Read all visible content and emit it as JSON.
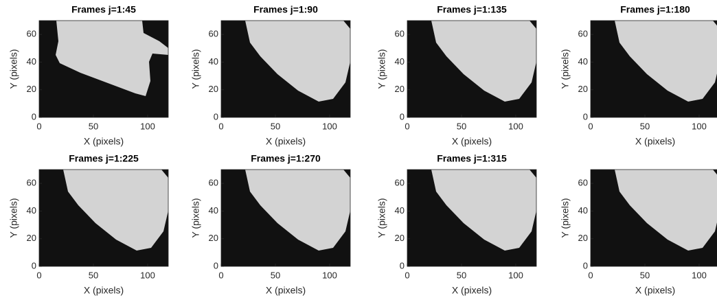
{
  "chart_data": [
    {
      "type": "image",
      "title": "Frames j=1:45",
      "xlabel": "X (pixels)",
      "ylabel": "Y (pixels)",
      "xlim": [
        0,
        119
      ],
      "ylim": [
        0,
        70
      ],
      "xticks": [
        0,
        50,
        100
      ],
      "yticks": [
        0,
        20,
        40,
        60
      ]
    },
    {
      "type": "image",
      "title": "Frames j=1:90",
      "xlabel": "X (pixels)",
      "ylabel": "Y (pixels)",
      "xlim": [
        0,
        119
      ],
      "ylim": [
        0,
        70
      ],
      "xticks": [
        0,
        50,
        100
      ],
      "yticks": [
        0,
        20,
        40,
        60
      ]
    },
    {
      "type": "image",
      "title": "Frames j=1:135",
      "xlabel": "X (pixels)",
      "ylabel": "Y (pixels)",
      "xlim": [
        0,
        119
      ],
      "ylim": [
        0,
        70
      ],
      "xticks": [
        0,
        50,
        100
      ],
      "yticks": [
        0,
        20,
        40,
        60
      ]
    },
    {
      "type": "image",
      "title": "Frames j=1:180",
      "xlabel": "X (pixels)",
      "ylabel": "Y (pixels)",
      "xlim": [
        0,
        119
      ],
      "ylim": [
        0,
        70
      ],
      "xticks": [
        0,
        50,
        100
      ],
      "yticks": [
        0,
        20,
        40,
        60
      ]
    },
    {
      "type": "image",
      "title": "Frames j=1:225",
      "xlabel": "X (pixels)",
      "ylabel": "Y (pixels)",
      "xlim": [
        0,
        119
      ],
      "ylim": [
        0,
        70
      ],
      "xticks": [
        0,
        50,
        100
      ],
      "yticks": [
        0,
        20,
        40,
        60
      ]
    },
    {
      "type": "image",
      "title": "Frames j=1:270",
      "xlabel": "X (pixels)",
      "ylabel": "Y (pixels)",
      "xlim": [
        0,
        119
      ],
      "ylim": [
        0,
        70
      ],
      "xticks": [
        0,
        50,
        100
      ],
      "yticks": [
        0,
        20,
        40,
        60
      ]
    },
    {
      "type": "image",
      "title": "Frames j=1:315",
      "xlabel": "X (pixels)",
      "ylabel": "Y (pixels)",
      "xlim": [
        0,
        119
      ],
      "ylim": [
        0,
        70
      ],
      "xticks": [
        0,
        50,
        100
      ],
      "yticks": [
        0,
        20,
        40,
        60
      ]
    },
    {
      "type": "image",
      "xlabel": "X (pixels)",
      "ylabel": "Y (pixels)",
      "xlim": [
        0,
        119
      ],
      "ylim": [
        0,
        70
      ],
      "xticks": [
        0,
        50,
        100
      ],
      "yticks": [
        0,
        20,
        40,
        60
      ]
    }
  ]
}
